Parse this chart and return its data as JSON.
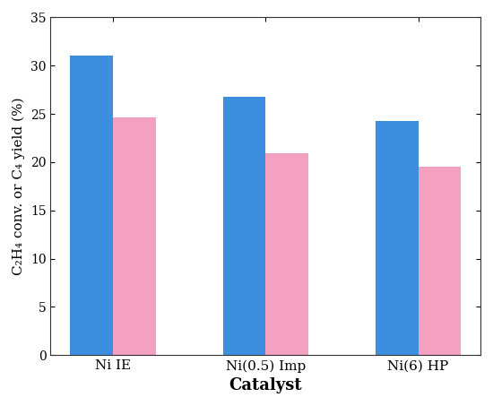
{
  "categories": [
    "Ni IE",
    "Ni(0.5) Imp",
    "Ni(6) HP"
  ],
  "blue_values": [
    31.0,
    26.8,
    24.3
  ],
  "pink_values": [
    24.6,
    20.9,
    19.5
  ],
  "blue_color": "#3D8EDE",
  "pink_color": "#F4A0C0",
  "ylabel": "C₂H₄ conv. or C₄ yield (%)",
  "xlabel": "Catalyst",
  "ylim": [
    0,
    35
  ],
  "yticks": [
    0,
    5,
    10,
    15,
    20,
    25,
    30,
    35
  ],
  "bar_width": 0.28,
  "figsize": [
    5.5,
    4.53
  ],
  "dpi": 100
}
